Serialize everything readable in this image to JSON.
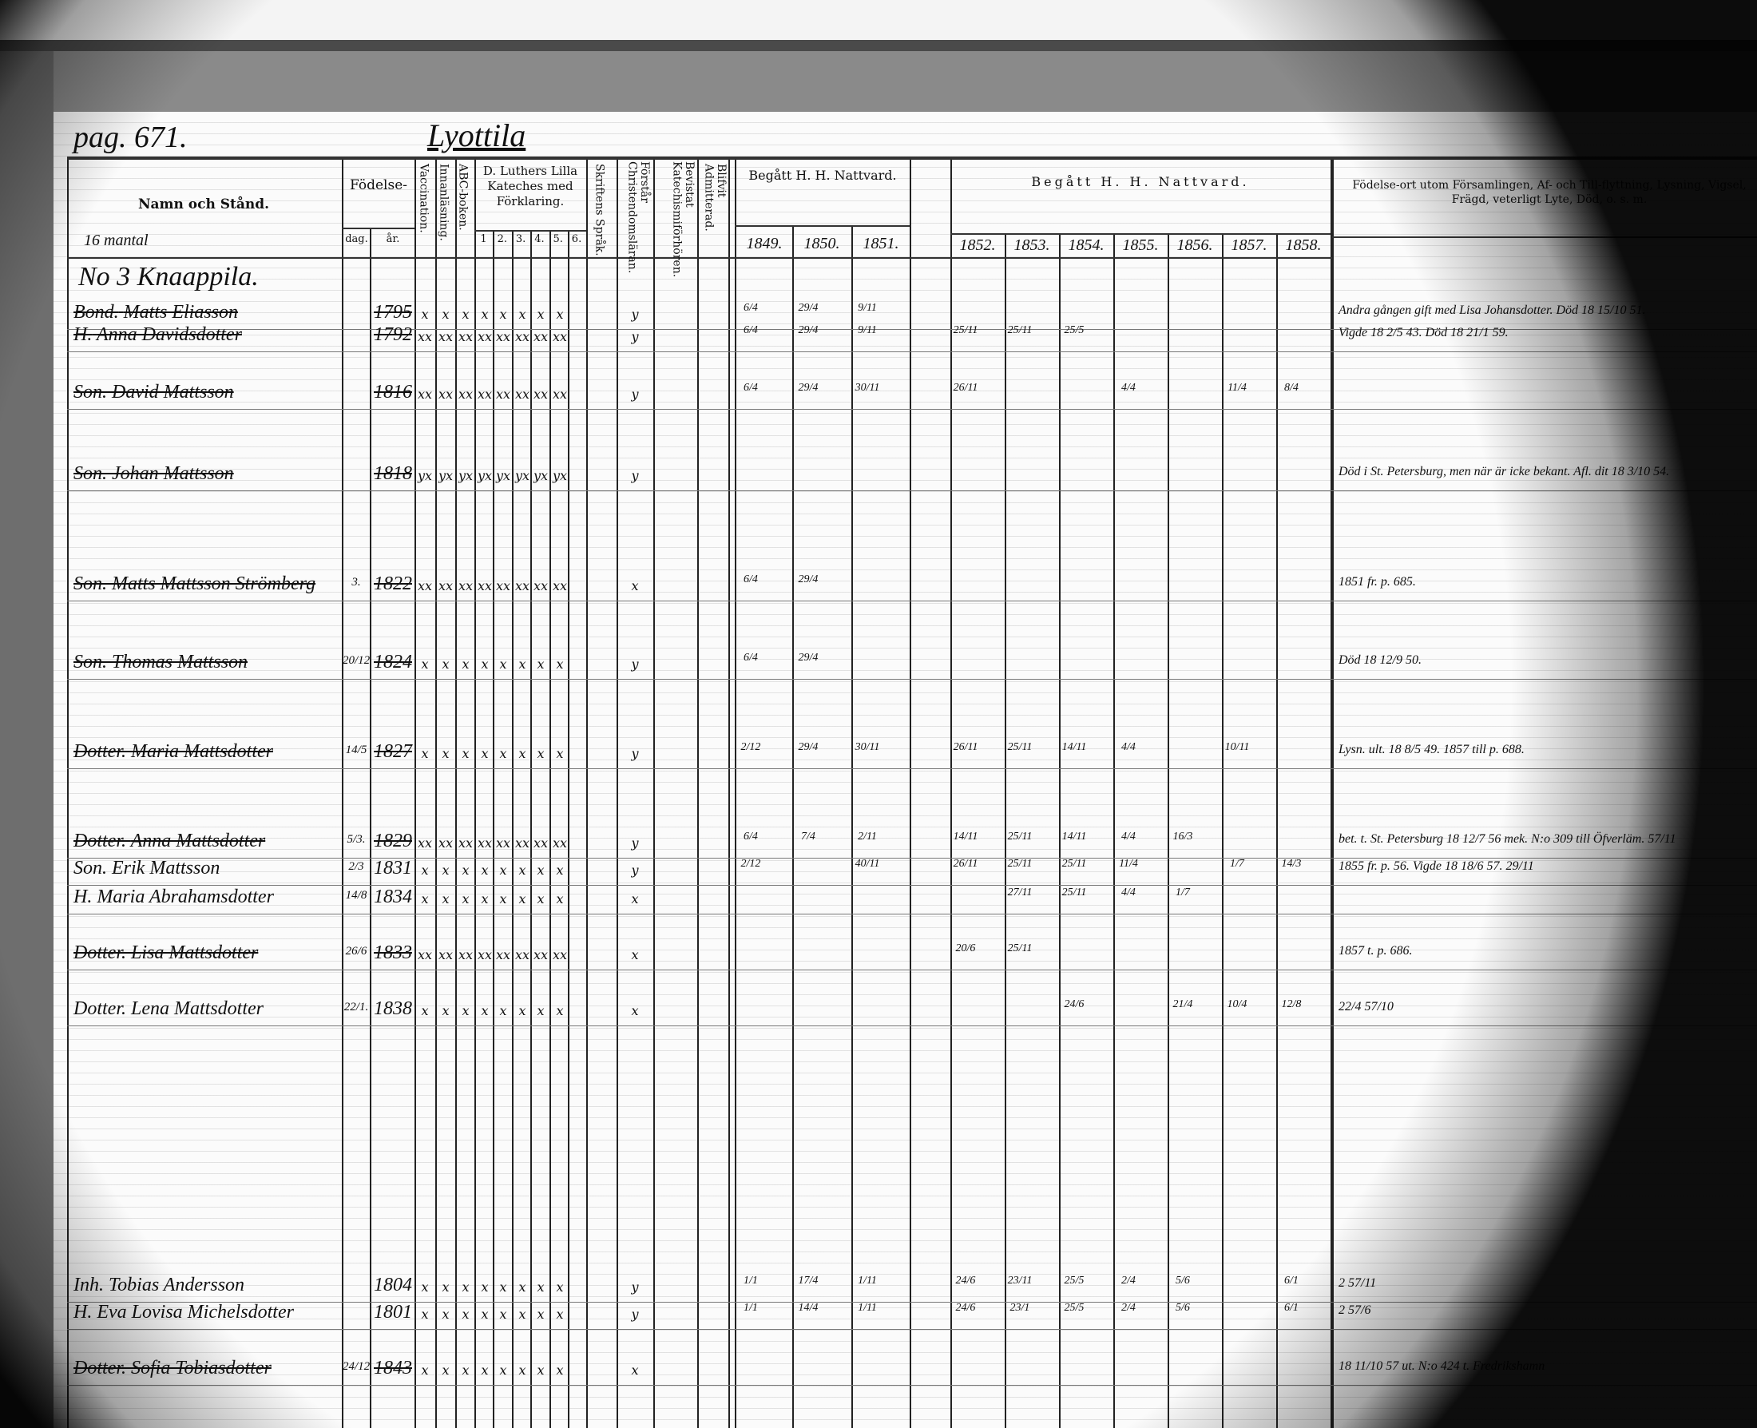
{
  "header": {
    "page_ref": "pag. 671.",
    "village": "Lyottila",
    "col_name": "Namn och Stånd.",
    "col_name_sub": "16 mantal",
    "col_birth": "Födelse-",
    "col_birth_day": "dag.",
    "col_birth_year": "år.",
    "col_vaccination": "Vaccination.",
    "col_reading": "Innanläsning.",
    "col_abc": "ABC-boken.",
    "col_luther": "D. Luthers Lilla Kateches med Förklaring.",
    "luther_parts": [
      "1",
      "2.",
      "3.",
      "4.",
      "5.",
      "6."
    ],
    "col_scripture": "Skriftens Språk.",
    "col_understands": "Förstår Christendomsläran.",
    "col_attended": "Bevistat Katechismiförhören.",
    "col_admitted": "Blifvit Admitterad.",
    "communion_title_1": "Begått H. H. Nattvard.",
    "communion_years_1": [
      "1849.",
      "1850.",
      "1851."
    ],
    "communion_title_2": "Begått H. H. Nattvard.",
    "communion_years_2": [
      "1852.",
      "1853.",
      "1854.",
      "1855.",
      "1856.",
      "1857.",
      "1858."
    ],
    "col_notes": "Födelse-ort utom Församlingen, Af- och Till-flyttning, Lysning, Vigsel, Frägd, veterligt Lyte, Död, o. s. m."
  },
  "household_heading": "No 3 Knaappila.",
  "rows": [
    {
      "prefix": "Bond.",
      "name": "Matts Eliasson",
      "day": "",
      "year": "1795",
      "struck": true,
      "marks": "x x x x x x x x",
      "understands": "y",
      "communion": [
        "6/4",
        "29/4",
        "9/11",
        "",
        "",
        "",
        "",
        "",
        "",
        ""
      ],
      "note": "Andra gången gift med Lisa Johansdotter. Död 18 15/10 51."
    },
    {
      "prefix": "H.",
      "name": "Anna Davidsdotter",
      "day": "",
      "year": "1792",
      "struck": true,
      "marks": "xx xx xx xx xx xx xx xx",
      "understands": "y",
      "communion": [
        "6/4",
        "29/4",
        "9/11",
        "25/11",
        "25/11",
        "25/5",
        "",
        "",
        "",
        ""
      ],
      "note": "Vigde 18 2/5 43. Död 18 21/1 59."
    },
    {
      "prefix": "Son.",
      "name": "David Mattsson",
      "day": "",
      "year": "1816",
      "struck": true,
      "marks": "xx xx xx xx xx xx xx xx",
      "understands": "y",
      "communion": [
        "6/4",
        "29/4",
        "30/11",
        "26/11",
        "",
        "",
        "4/4",
        "",
        "11/4",
        "8/4"
      ],
      "note": ""
    },
    {
      "prefix": "Son.",
      "name": "Johan Mattsson",
      "day": "",
      "year": "1818",
      "struck": true,
      "marks": "yx yx yx yx yx yx yx yx",
      "understands": "y",
      "communion": [
        "",
        "",
        "",
        "",
        "",
        "",
        "",
        "",
        "",
        ""
      ],
      "note": "Död i St. Petersburg, men när är icke bekant. Afl. dit 18 3/10 54."
    },
    {
      "prefix": "Son.",
      "name": "Matts Mattsson Strömberg",
      "day": "3.",
      "year": "1822",
      "struck": true,
      "marks": "xx xx xx xx xx xx xx xx",
      "understands": "x",
      "communion": [
        "6/4",
        "29/4",
        "",
        "",
        "",
        "",
        "",
        "",
        "",
        ""
      ],
      "note": "1851 fr. p. 685."
    },
    {
      "prefix": "Son.",
      "name": "Thomas Mattsson",
      "day": "20/12",
      "year": "1824",
      "struck": true,
      "marks": "x x x x x x x x",
      "understands": "y",
      "communion": [
        "6/4",
        "29/4",
        "",
        "",
        "",
        "",
        "",
        "",
        "",
        ""
      ],
      "note": "Död 18 12/9 50."
    },
    {
      "prefix": "Dotter.",
      "name": "Maria Mattsdotter",
      "day": "14/5",
      "year": "1827",
      "struck": true,
      "marks": "x x x x x x x x",
      "understands": "y",
      "communion": [
        "2/12",
        "29/4",
        "30/11",
        "26/11",
        "25/11",
        "14/11",
        "4/4",
        "",
        "10/11",
        ""
      ],
      "note": "Lysn. ult. 18 8/5 49. 1857 till p. 688."
    },
    {
      "prefix": "Dotter.",
      "name": "Anna Mattsdotter",
      "day": "5/3.",
      "year": "1829",
      "struck": true,
      "marks": "xx xx xx xx xx xx xx xx",
      "understands": "y",
      "communion": [
        "6/4",
        "7/4",
        "2/11",
        "14/11",
        "25/11",
        "14/11",
        "4/4",
        "16/3",
        "",
        ""
      ],
      "note": "bet. t. St. Petersburg 18 12/7 56 mek. N:o 309 till Öfverläm. 57/11"
    },
    {
      "prefix": "Son.",
      "name": "Erik Mattsson",
      "day": "2/3",
      "year": "1831",
      "struck": false,
      "marks": "x x x x x x x x",
      "understands": "y",
      "communion": [
        "2/12",
        "",
        "40/11",
        "26/11",
        "25/11",
        "25/11",
        "11/4",
        "",
        "1/7",
        "14/3"
      ],
      "note": "1855 fr. p. 56. Vigde 18 18/6 57. 29/11"
    },
    {
      "prefix": "H.",
      "name": "Maria Abrahamsdotter",
      "day": "14/8",
      "year": "1834",
      "struck": false,
      "marks": "x x x x x x x x",
      "understands": "x",
      "communion": [
        "",
        "",
        "",
        "",
        "27/11",
        "25/11",
        "4/4",
        "1/7",
        "",
        ""
      ],
      "note": ""
    },
    {
      "prefix": "Dotter.",
      "name": "Lisa Mattsdotter",
      "day": "26/6",
      "year": "1833",
      "struck": true,
      "marks": "xx xx xx xx xx xx xx xx",
      "understands": "x",
      "communion": [
        "",
        "",
        "",
        "20/6",
        "25/11",
        "",
        "",
        "",
        "",
        ""
      ],
      "note": "1857 t. p. 686."
    },
    {
      "prefix": "Dotter.",
      "name": "Lena Mattsdotter",
      "day": "22/1.",
      "year": "1838",
      "struck": false,
      "marks": "x x x x x x x x",
      "understands": "x",
      "communion": [
        "",
        "",
        "",
        "",
        "",
        "24/6",
        "",
        "21/4",
        "10/4",
        "12/8"
      ],
      "note": "22/4 57/10"
    },
    {
      "prefix": "Inh.",
      "name": "Tobias Andersson",
      "day": "",
      "year": "1804",
      "struck": false,
      "marks": "x x x x x x x x",
      "understands": "y",
      "communion": [
        "1/1",
        "17/4",
        "1/11",
        "24/6",
        "23/11",
        "25/5",
        "2/4",
        "5/6",
        "",
        "6/1"
      ],
      "note": "2 57/11"
    },
    {
      "prefix": "H.",
      "name": "Eva Lovisa Michelsdotter",
      "day": "",
      "year": "1801",
      "struck": false,
      "marks": "x x x x x x x x",
      "understands": "y",
      "communion": [
        "1/1",
        "14/4",
        "1/11",
        "24/6",
        "23/1",
        "25/5",
        "2/4",
        "5/6",
        "",
        "6/1"
      ],
      "note": "2 57/6"
    },
    {
      "prefix": "Dotter.",
      "name": "Sofia Tobiasdotter",
      "day": "24/12",
      "year": "1843",
      "struck": true,
      "marks": "x x x x x x x x",
      "understands": "x",
      "communion": [
        "",
        "",
        "",
        "",
        "",
        "",
        "",
        "",
        "",
        ""
      ],
      "note": "18 11/10 57 ut. N:o 424 t. Fredrikshamn"
    }
  ]
}
